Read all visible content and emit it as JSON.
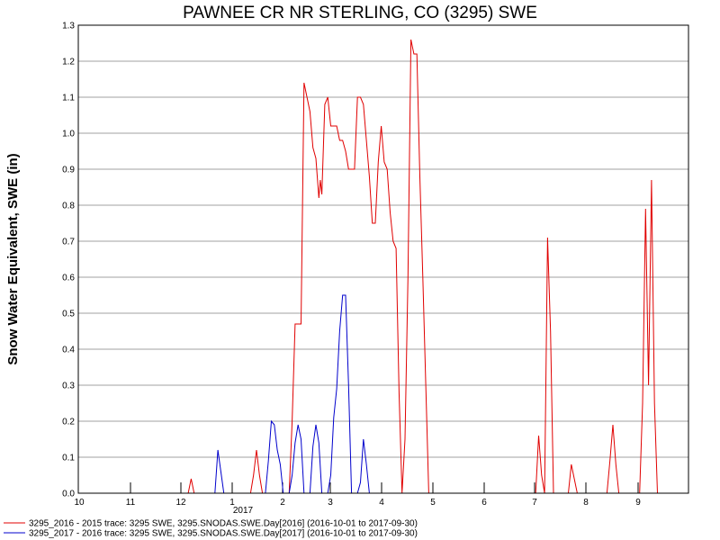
{
  "chart_data": {
    "type": "line",
    "title": "PAWNEE CR NR STERLING, CO (3295) SWE",
    "ylabel": "Snow Water Equivalent, SWE (in)",
    "xlabel": "",
    "ylim": [
      0,
      1.3
    ],
    "y_ticks": [
      "0.0",
      "0.1",
      "0.2",
      "0.3",
      "0.4",
      "0.5",
      "0.6",
      "0.7",
      "0.8",
      "0.9",
      "1.0",
      "1.1",
      "1.2",
      "1.3"
    ],
    "x_ticks": [
      "10",
      "11",
      "12",
      "1",
      "2",
      "3",
      "4",
      "5",
      "6",
      "7",
      "8",
      "9"
    ],
    "x_year_label": "2017",
    "grid": true,
    "legend_position": "bottom",
    "series": [
      {
        "name": "3295_2016 - 2015 trace: 3295 SWE, 3295.SNODAS.SWE.Day[2016] (2016-10-01 to 2017-09-30)",
        "color": "#e00000",
        "points": [
          [
            37,
            0
          ],
          [
            38,
            0.04
          ],
          [
            39,
            0
          ],
          [
            58,
            0
          ],
          [
            59,
            0.05
          ],
          [
            60,
            0.12
          ],
          [
            61,
            0.05
          ],
          [
            62,
            0
          ],
          [
            71,
            0
          ],
          [
            72,
            0.2
          ],
          [
            73,
            0.47
          ],
          [
            75,
            0.47
          ],
          [
            76,
            1.14
          ],
          [
            77,
            1.1
          ],
          [
            78,
            1.06
          ],
          [
            79,
            0.96
          ],
          [
            80,
            0.93
          ],
          [
            81,
            0.82
          ],
          [
            81.5,
            0.87
          ],
          [
            82,
            0.83
          ],
          [
            83,
            1.08
          ],
          [
            84,
            1.1
          ],
          [
            85,
            1.02
          ],
          [
            87,
            1.02
          ],
          [
            88,
            0.98
          ],
          [
            89,
            0.98
          ],
          [
            90,
            0.95
          ],
          [
            91,
            0.9
          ],
          [
            93,
            0.9
          ],
          [
            94,
            1.1
          ],
          [
            95,
            1.1
          ],
          [
            96,
            1.08
          ],
          [
            97,
            0.98
          ],
          [
            98,
            0.88
          ],
          [
            99,
            0.75
          ],
          [
            100,
            0.75
          ],
          [
            101,
            0.92
          ],
          [
            102,
            1.02
          ],
          [
            103,
            0.92
          ],
          [
            104,
            0.9
          ],
          [
            105,
            0.78
          ],
          [
            106,
            0.7
          ],
          [
            107,
            0.68
          ],
          [
            108,
            0.28
          ],
          [
            109,
            0
          ],
          [
            110,
            0.15
          ],
          [
            111,
            0.6
          ],
          [
            112,
            1.26
          ],
          [
            113,
            1.22
          ],
          [
            114,
            1.22
          ],
          [
            115,
            0.88
          ],
          [
            116,
            0.6
          ],
          [
            117,
            0.3
          ],
          [
            118,
            0
          ],
          [
            154,
            0
          ],
          [
            155,
            0.16
          ],
          [
            156,
            0.05
          ],
          [
            157,
            0
          ],
          [
            158,
            0.71
          ],
          [
            159,
            0.45
          ],
          [
            160,
            0
          ],
          [
            165,
            0
          ],
          [
            166,
            0.08
          ],
          [
            167,
            0.04
          ],
          [
            168,
            0
          ],
          [
            178,
            0
          ],
          [
            179,
            0.09
          ],
          [
            180,
            0.19
          ],
          [
            181,
            0.08
          ],
          [
            182,
            0
          ],
          [
            189,
            0
          ],
          [
            190,
            0.25
          ],
          [
            191,
            0.79
          ],
          [
            192,
            0.3
          ],
          [
            193,
            0.87
          ],
          [
            194,
            0.25
          ],
          [
            195,
            0
          ]
        ]
      },
      {
        "name": "3295_2017 - 2016 trace: 3295 SWE, 3295.SNODAS.SWE.Day[2017] (2016-10-01 to 2017-09-30)",
        "color": "#0000cc",
        "points": [
          [
            46,
            0
          ],
          [
            47,
            0.12
          ],
          [
            48,
            0.06
          ],
          [
            49,
            0
          ],
          [
            63,
            0
          ],
          [
            64,
            0.09
          ],
          [
            65,
            0.2
          ],
          [
            66,
            0.19
          ],
          [
            67,
            0.12
          ],
          [
            68,
            0.08
          ],
          [
            69,
            0
          ],
          [
            71,
            0
          ],
          [
            72,
            0.05
          ],
          [
            73,
            0.14
          ],
          [
            74,
            0.19
          ],
          [
            75,
            0.15
          ],
          [
            76,
            0
          ],
          [
            78,
            0
          ],
          [
            79,
            0.13
          ],
          [
            80,
            0.19
          ],
          [
            81,
            0.14
          ],
          [
            82,
            0
          ],
          [
            84,
            0
          ],
          [
            85,
            0.05
          ],
          [
            86,
            0.21
          ],
          [
            87,
            0.29
          ],
          [
            88,
            0.45
          ],
          [
            89,
            0.55
          ],
          [
            90,
            0.55
          ],
          [
            91,
            0.3
          ],
          [
            92,
            0
          ],
          [
            94,
            0
          ],
          [
            95,
            0.03
          ],
          [
            96,
            0.15
          ],
          [
            97,
            0.08
          ],
          [
            98,
            0
          ]
        ]
      }
    ]
  }
}
